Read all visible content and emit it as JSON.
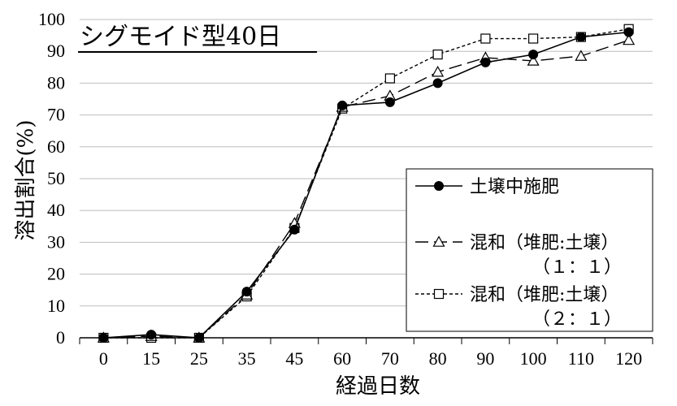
{
  "chart_data": {
    "type": "line",
    "title": "シグモイド型40日",
    "xlabel": "経過日数",
    "ylabel": "溶出割合(%)",
    "categories": [
      "0",
      "15",
      "25",
      "35",
      "45",
      "60",
      "70",
      "80",
      "90",
      "100",
      "110",
      "120"
    ],
    "ylim": [
      0,
      100
    ],
    "yticks": [
      "0",
      "10",
      "20",
      "30",
      "40",
      "50",
      "60",
      "70",
      "80",
      "90",
      "100"
    ],
    "grid": true,
    "legend_position": "lower-right",
    "series": [
      {
        "name": "土壌中施肥",
        "marker": "filled-circle",
        "line": "solid",
        "values": [
          0,
          1,
          0,
          14.5,
          34,
          73,
          74,
          80,
          86.5,
          89,
          94.5,
          96
        ]
      },
      {
        "name": "混和（堆肥:土壌）（１：１）",
        "label_line1": "混和（堆肥:土壌）",
        "label_line2": "（１：１）",
        "marker": "open-triangle",
        "line": "long-dash",
        "values": [
          0,
          0.5,
          0,
          13.5,
          36,
          72.5,
          76,
          83.5,
          88,
          87,
          88.5,
          93.5
        ]
      },
      {
        "name": "混和（堆肥:土壌）（２：１）",
        "label_line1": "混和（堆肥:土壌）",
        "label_line2": "（２：１）",
        "marker": "open-square",
        "line": "short-dash",
        "values": [
          0,
          0,
          0,
          13,
          34.5,
          72,
          81.5,
          89,
          94,
          94,
          94.5,
          97
        ]
      }
    ]
  }
}
